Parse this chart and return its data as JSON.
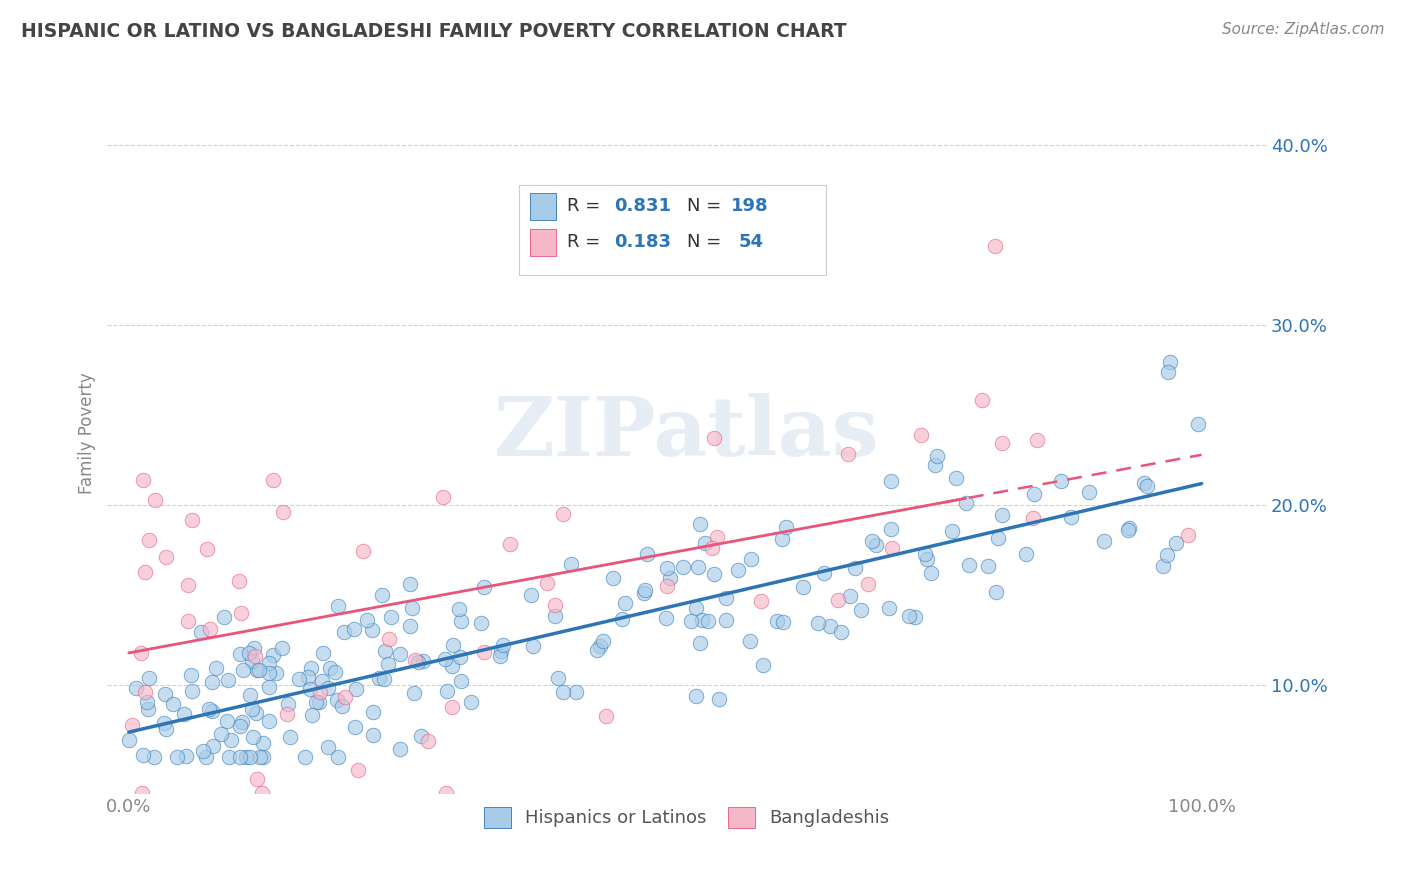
{
  "title": "HISPANIC OR LATINO VS BANGLADESHI FAMILY POVERTY CORRELATION CHART",
  "source": "Source: ZipAtlas.com",
  "ylabel": "Family Poverty",
  "x_ticks": [
    0.0,
    0.2,
    0.4,
    0.6,
    0.8,
    1.0
  ],
  "x_tick_labels": [
    "0.0%",
    "",
    "",
    "",
    "",
    "100.0%"
  ],
  "y_ticks": [
    0.1,
    0.2,
    0.3,
    0.4
  ],
  "y_tick_labels": [
    "10.0%",
    "20.0%",
    "30.0%",
    "40.0%"
  ],
  "xlim": [
    -0.02,
    1.06
  ],
  "ylim": [
    0.04,
    0.44
  ],
  "blue_color": "#a8cce8",
  "pink_color": "#f5b8c8",
  "blue_line_color": "#2e75b6",
  "pink_line_color": "#e8547a",
  "R_blue": 0.831,
  "N_blue": 198,
  "R_pink": 0.183,
  "N_pink": 54,
  "legend_labels": [
    "Hispanics or Latinos",
    "Bangladeshis"
  ],
  "watermark": "ZIPatlas",
  "grid_color": "#cccccc",
  "bg_color": "#ffffff",
  "title_color": "#444444",
  "axis_label_color": "#888888",
  "tick_color": "#888888",
  "legend_value_color": "#2e75b6"
}
